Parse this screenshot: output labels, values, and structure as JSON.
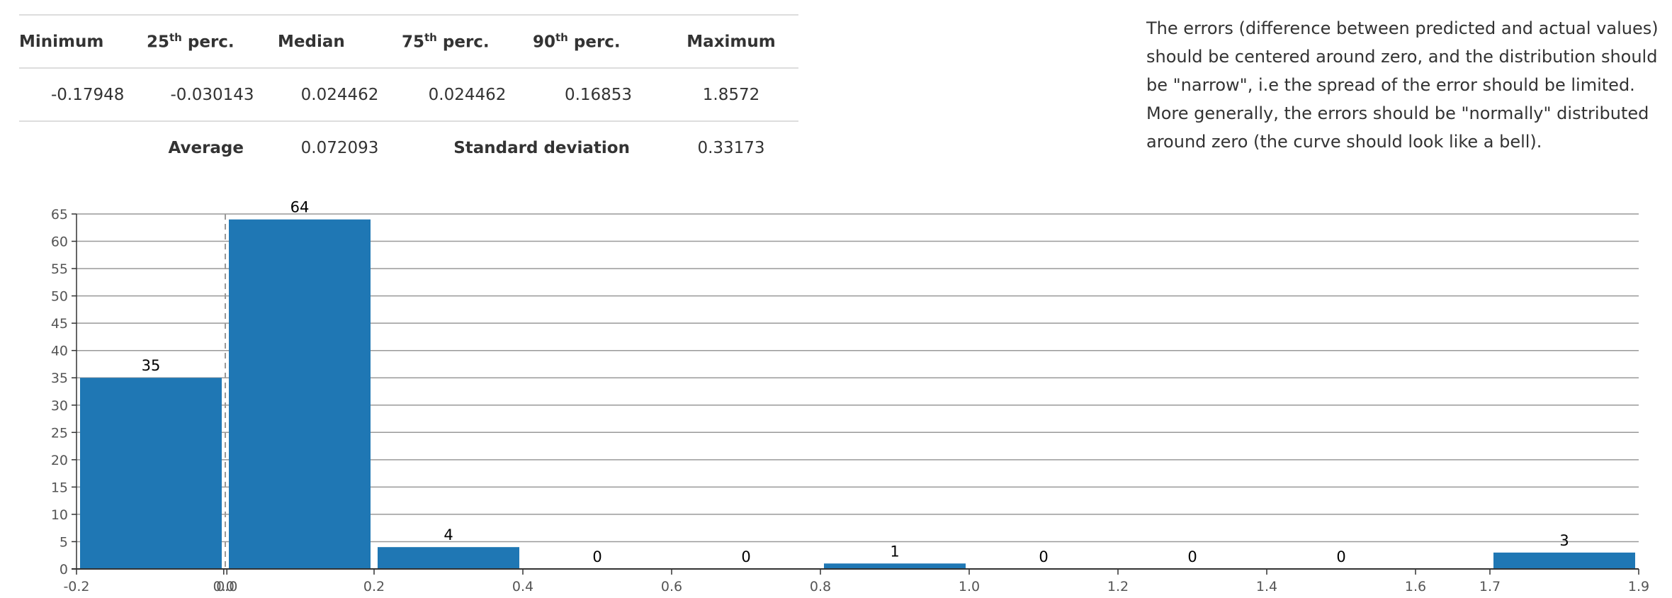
{
  "stats": {
    "headers": {
      "minimum": "Minimum",
      "p25_base": "25",
      "p25_sup": "th",
      "p25_rest": " perc.",
      "median": "Median",
      "p75_base": "75",
      "p75_sup": "th",
      "p75_rest": " perc.",
      "p90_base": "90",
      "p90_sup": "th",
      "p90_rest": " perc.",
      "maximum": "Maximum"
    },
    "values": {
      "minimum": "-0.17948",
      "p25": "-0.030143",
      "median": "0.024462",
      "p75": "0.024462",
      "p90": "0.16853",
      "maximum": "1.8572"
    },
    "average_label": "Average",
    "average_value": "0.072093",
    "std_label": "Standard deviation",
    "std_value": "0.33173"
  },
  "description": "The errors (difference between predicted and actual values) should be centered around zero, and the distribution should be \"narrow\", i.e the spread of the error should be limited. More generally, the errors should be \"normally\" distributed around zero (the curve should look like a bell).",
  "colors": {
    "bar": "#1f77b4",
    "grid": "#999999",
    "axis": "#333333",
    "zero_line": "#999999"
  },
  "chart_data": {
    "type": "bar",
    "subtype": "histogram",
    "title": "",
    "xlabel": "",
    "ylabel": "",
    "xlim": [
      -0.2,
      1.9
    ],
    "ylim": [
      0,
      65
    ],
    "y_ticks": [
      0,
      5,
      10,
      15,
      20,
      25,
      30,
      35,
      40,
      45,
      50,
      55,
      60,
      65
    ],
    "x_ticks": [
      "-0.2",
      "0.0",
      "0.0",
      "0.2",
      "0.4",
      "0.6",
      "0.8",
      "1.0",
      "1.2",
      "1.4",
      "1.6",
      "1.7",
      "1.9"
    ],
    "x_tick_values": [
      -0.2,
      -0.0021,
      0.0021,
      0.2,
      0.4,
      0.6,
      0.8,
      1.0,
      1.2,
      1.4,
      1.6,
      1.7,
      1.9
    ],
    "bins": [
      {
        "from": -0.2,
        "to": 0.0,
        "count": 35,
        "label": "35"
      },
      {
        "from": 0.0,
        "to": 0.2,
        "count": 64,
        "label": "64"
      },
      {
        "from": 0.2,
        "to": 0.4,
        "count": 4,
        "label": "4"
      },
      {
        "from": 0.4,
        "to": 0.6,
        "count": 0,
        "label": "0"
      },
      {
        "from": 0.6,
        "to": 0.8,
        "count": 0,
        "label": "0"
      },
      {
        "from": 0.8,
        "to": 1.0,
        "count": 1,
        "label": "1"
      },
      {
        "from": 1.0,
        "to": 1.2,
        "count": 0,
        "label": "0"
      },
      {
        "from": 1.2,
        "to": 1.4,
        "count": 0,
        "label": "0"
      },
      {
        "from": 1.4,
        "to": 1.6,
        "count": 0,
        "label": "0"
      },
      {
        "from": 1.7,
        "to": 1.9,
        "count": 3,
        "label": "3"
      }
    ],
    "reference_line": {
      "x": 0.0,
      "style": "dashed"
    },
    "grid": true
  }
}
